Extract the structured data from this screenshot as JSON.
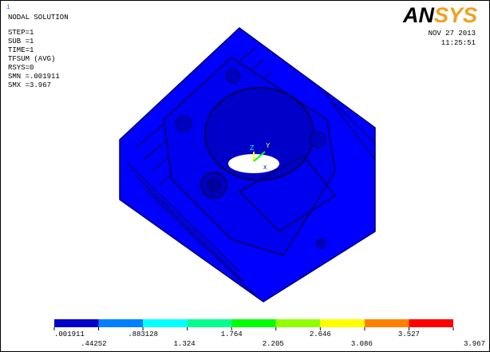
{
  "window_number": "1",
  "header": {
    "title": "NODAL SOLUTION",
    "lines": [
      "STEP=1",
      "SUB =1",
      "TIME=1",
      "TFSUM    (AVG)",
      "RSYS=0",
      "SMN =.001911",
      "SMX =3.967"
    ]
  },
  "logo": {
    "parts": [
      "AN",
      "SYS"
    ],
    "colors": [
      "#000000",
      "#f0a020"
    ]
  },
  "date": "NOV 27 2013",
  "time": "11:25:51",
  "triad": {
    "labels": [
      "Z",
      "Y",
      "X"
    ]
  },
  "legend": {
    "colors": [
      "#0000c8",
      "#0080ff",
      "#00ffff",
      "#00ff90",
      "#00ff00",
      "#90ff00",
      "#ffff00",
      "#ff8000",
      "#ff0000"
    ],
    "upper_labels": [
      ".001911",
      ".883128",
      "1.764",
      "2.646",
      "3.527"
    ],
    "lower_labels": [
      ".44252",
      "1.324",
      "2.205",
      "3.086",
      "3.967"
    ]
  }
}
